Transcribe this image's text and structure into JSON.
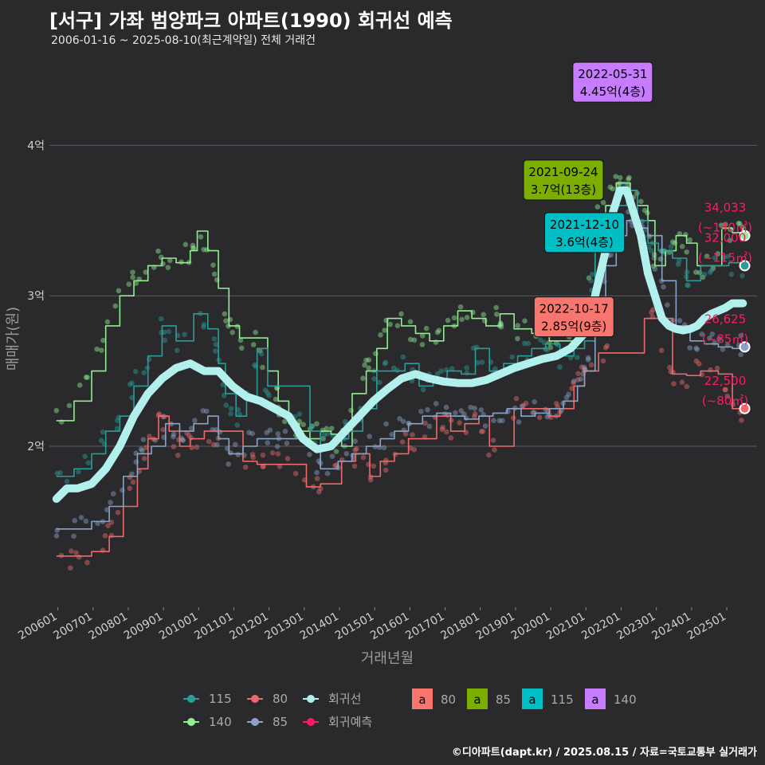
{
  "header": {
    "title": "[서구] 가좌 범양파크 아파트(1990) 회귀선 예측",
    "subtitle": "2006-01-16 ~ 2025-08-10(최근계약일) 전체 거래건"
  },
  "caption": "©디아파트(dapt.kr) / 2025.08.15 / 자료=국토교통부 실거래가",
  "colors": {
    "background": "#2a2a2d",
    "s115": "#2a9d9a",
    "s140": "#90ee90",
    "s80": "#ee6a6a",
    "s85": "#8aa3c8",
    "regression": "#b2f0ee",
    "predict": "#ff1a66",
    "tag80": "#f8766d",
    "tag85": "#7cae00",
    "tag115": "#00bfc4",
    "tag140": "#c77cff"
  },
  "chart_data": {
    "type": "line",
    "xlabel": "거래년월",
    "ylabel": "매매가(원)",
    "x_ticks": [
      "200601",
      "200701",
      "200801",
      "200901",
      "201001",
      "201101",
      "201201",
      "201301",
      "201401",
      "201501",
      "201601",
      "201701",
      "201801",
      "201901",
      "202001",
      "202101",
      "202201",
      "202301",
      "202401",
      "202501"
    ],
    "y_ticks": [
      {
        "value": 2.0,
        "label": "2억"
      },
      {
        "value": 3.0,
        "label": "3억"
      },
      {
        "value": 4.0,
        "label": "4억"
      }
    ],
    "ylim": [
      0.93,
      4.5
    ],
    "xlim": [
      2005.8,
      2025.9
    ],
    "grid": true,
    "series": [
      {
        "name": "140",
        "color_key": "s140",
        "x": [
          2006.0,
          2006.5,
          2007.0,
          2007.4,
          2007.8,
          2008.2,
          2008.6,
          2009.0,
          2009.4,
          2009.8,
          2010.0,
          2010.3,
          2010.6,
          2010.9,
          2011.2,
          2011.6,
          2012.0,
          2012.3,
          2012.6,
          2012.9,
          2013.2,
          2013.5,
          2013.8,
          2014.1,
          2014.4,
          2014.8,
          2015.1,
          2015.4,
          2015.8,
          2016.2,
          2016.6,
          2017.0,
          2017.4,
          2017.8,
          2018.2,
          2018.6,
          2019.0,
          2019.5,
          2020.0,
          2020.5,
          2020.8,
          2021.0,
          2021.3,
          2021.6,
          2021.9,
          2022.1,
          2022.3,
          2022.5,
          2022.8,
          2023.0,
          2023.3,
          2023.6,
          2023.9,
          2024.2,
          2024.6,
          2024.9,
          2025.2,
          2025.5
        ],
        "y": [
          2.17,
          2.3,
          2.5,
          2.8,
          3.0,
          3.1,
          3.2,
          3.25,
          3.22,
          3.3,
          3.43,
          3.3,
          3.05,
          2.8,
          2.72,
          2.72,
          2.5,
          2.3,
          2.15,
          2.1,
          2.05,
          2.1,
          2.08,
          2.0,
          2.35,
          2.5,
          2.65,
          2.85,
          2.8,
          2.75,
          2.7,
          2.8,
          2.9,
          2.85,
          2.8,
          2.88,
          2.78,
          2.75,
          2.7,
          2.7,
          2.75,
          2.9,
          3.5,
          3.6,
          3.75,
          3.75,
          3.7,
          3.6,
          3.5,
          3.2,
          3.3,
          3.4,
          3.35,
          3.2,
          3.2,
          3.45,
          3.42,
          3.45
        ]
      },
      {
        "name": "115",
        "color_key": "s115",
        "x": [
          2006.0,
          2006.5,
          2007.0,
          2007.4,
          2007.8,
          2008.2,
          2008.6,
          2009.0,
          2009.4,
          2009.9,
          2010.3,
          2010.6,
          2010.8,
          2011.1,
          2011.4,
          2011.7,
          2012.0,
          2013.2,
          2013.5,
          2013.9,
          2014.3,
          2014.7,
          2015.1,
          2015.5,
          2015.9,
          2016.3,
          2016.7,
          2017.1,
          2017.5,
          2017.9,
          2018.3,
          2018.7,
          2019.1,
          2019.5,
          2019.9,
          2020.3,
          2020.7,
          2021.0,
          2021.3,
          2021.6,
          2021.9,
          2022.2,
          2022.5,
          2022.8,
          2023.1,
          2023.5,
          2023.9,
          2024.3,
          2024.7,
          2025.1,
          2025.5
        ],
        "y": [
          1.8,
          1.85,
          1.95,
          2.1,
          2.2,
          2.4,
          2.6,
          2.8,
          2.7,
          2.88,
          2.78,
          2.55,
          2.35,
          2.2,
          2.3,
          2.65,
          2.4,
          2.1,
          2.0,
          2.05,
          2.1,
          2.25,
          2.5,
          2.5,
          2.55,
          2.4,
          2.45,
          2.5,
          2.48,
          2.65,
          2.5,
          2.55,
          2.6,
          2.65,
          2.68,
          2.6,
          2.65,
          2.7,
          3.3,
          3.45,
          3.6,
          3.7,
          3.5,
          3.35,
          3.3,
          3.25,
          3.1,
          3.2,
          3.2,
          3.22,
          3.2
        ]
      },
      {
        "name": "80",
        "color_key": "s80",
        "x": [
          2006.0,
          2006.5,
          2007.0,
          2007.5,
          2007.9,
          2008.3,
          2008.6,
          2008.9,
          2009.2,
          2009.5,
          2009.8,
          2010.2,
          2011.3,
          2011.7,
          2012.0,
          2012.4,
          2013.1,
          2013.5,
          2014.1,
          2014.5,
          2014.9,
          2015.2,
          2015.6,
          2016.0,
          2016.4,
          2016.8,
          2017.2,
          2017.6,
          2018.0,
          2018.3,
          2019.0,
          2019.5,
          2020.0,
          2020.3,
          2020.7,
          2021.0,
          2021.4,
          2022.7,
          2023.0,
          2023.5,
          2023.9,
          2024.3,
          2024.8,
          2025.2,
          2025.5
        ],
        "y": [
          1.27,
          1.27,
          1.3,
          1.4,
          1.6,
          1.85,
          2.05,
          2.2,
          2.1,
          2.0,
          2.05,
          2.1,
          1.9,
          1.88,
          1.88,
          1.88,
          1.73,
          1.75,
          1.9,
          1.95,
          1.8,
          1.9,
          1.95,
          2.05,
          2.05,
          2.2,
          2.1,
          2.15,
          2.2,
          2.0,
          2.25,
          2.25,
          2.2,
          2.25,
          2.4,
          2.5,
          2.62,
          2.85,
          2.85,
          2.48,
          2.47,
          2.5,
          2.48,
          2.25,
          2.25
        ]
      },
      {
        "name": "85",
        "color_key": "s85",
        "x": [
          2006.0,
          2006.5,
          2007.0,
          2007.5,
          2007.9,
          2008.3,
          2008.7,
          2009.1,
          2009.5,
          2009.9,
          2010.3,
          2010.6,
          2010.9,
          2011.3,
          2011.7,
          2012.1,
          2012.4,
          2013.1,
          2013.5,
          2014.0,
          2014.4,
          2014.8,
          2015.2,
          2015.6,
          2016.0,
          2016.4,
          2016.8,
          2017.2,
          2017.6,
          2018.0,
          2018.4,
          2018.8,
          2019.2,
          2019.6,
          2020.0,
          2020.4,
          2020.8,
          2021.0,
          2021.3,
          2021.6,
          2021.9,
          2022.2,
          2022.5,
          2022.8,
          2023.2,
          2023.6,
          2024.0,
          2024.4,
          2024.8,
          2025.2,
          2025.5
        ],
        "y": [
          1.45,
          1.45,
          1.5,
          1.6,
          1.8,
          1.95,
          2.0,
          2.15,
          2.1,
          2.15,
          2.2,
          2.05,
          1.95,
          2.0,
          2.05,
          2.05,
          2.05,
          2.0,
          1.85,
          1.9,
          1.95,
          2.0,
          2.05,
          2.1,
          2.15,
          2.2,
          2.22,
          2.2,
          2.18,
          2.2,
          2.22,
          2.25,
          2.2,
          2.22,
          2.25,
          2.3,
          2.4,
          2.5,
          2.8,
          3.2,
          3.4,
          3.5,
          3.45,
          3.4,
          3.1,
          2.8,
          2.7,
          2.68,
          2.66,
          2.65,
          2.66
        ]
      },
      {
        "name": "회귀선",
        "color_key": "regression",
        "x": [
          2006.0,
          2006.3,
          2006.6,
          2007.0,
          2007.4,
          2007.8,
          2008.2,
          2008.6,
          2009.0,
          2009.4,
          2009.8,
          2010.2,
          2010.6,
          2011.0,
          2011.4,
          2011.8,
          2012.2,
          2012.6,
          2013.0,
          2013.4,
          2013.8,
          2014.2,
          2014.6,
          2015.0,
          2015.4,
          2015.8,
          2016.2,
          2016.6,
          2017.0,
          2017.4,
          2017.8,
          2018.2,
          2018.6,
          2019.0,
          2019.4,
          2019.8,
          2020.2,
          2020.6,
          2021.0,
          2021.2,
          2021.4,
          2021.6,
          2021.8,
          2022.0,
          2022.2,
          2022.4,
          2022.6,
          2022.8,
          2023.0,
          2023.2,
          2023.4,
          2023.6,
          2023.8,
          2024.0,
          2024.2,
          2024.4,
          2024.6,
          2024.8,
          2025.0,
          2025.2,
          2025.5
        ],
        "y": [
          1.65,
          1.72,
          1.72,
          1.75,
          1.85,
          2.0,
          2.2,
          2.35,
          2.45,
          2.52,
          2.55,
          2.5,
          2.5,
          2.4,
          2.33,
          2.3,
          2.25,
          2.2,
          2.05,
          1.98,
          2.0,
          2.1,
          2.2,
          2.3,
          2.38,
          2.45,
          2.48,
          2.45,
          2.43,
          2.42,
          2.42,
          2.44,
          2.48,
          2.52,
          2.55,
          2.58,
          2.6,
          2.65,
          2.75,
          2.9,
          3.1,
          3.3,
          3.55,
          3.7,
          3.7,
          3.55,
          3.4,
          3.15,
          3.0,
          2.85,
          2.8,
          2.78,
          2.77,
          2.78,
          2.8,
          2.85,
          2.88,
          2.9,
          2.92,
          2.95,
          2.95
        ]
      }
    ],
    "annotations": [
      {
        "date": "2022-05-31",
        "text": "4.45억(4층)",
        "tag": "140",
        "x": 2021.8,
        "y": 4.42
      },
      {
        "date": "2021-09-24",
        "text": "3.7억(13층)",
        "tag": "85",
        "x": 2020.4,
        "y": 3.77
      },
      {
        "date": "2021-12-10",
        "text": "3.6억(4층)",
        "tag": "115",
        "x": 2021.0,
        "y": 3.42
      },
      {
        "date": "2022-10-17",
        "text": "2.85억(9층)",
        "tag": "80",
        "x": 2020.7,
        "y": 2.86
      }
    ],
    "predictions": [
      {
        "value": "34,033",
        "area": "(~140㎡)",
        "y": 3.4,
        "series": "140"
      },
      {
        "value": "32,000",
        "area": "(~115㎡)",
        "y": 3.2,
        "series": "115"
      },
      {
        "value": "26,625",
        "area": "(~85㎡)",
        "y": 2.66,
        "series": "85"
      },
      {
        "value": "22,500",
        "area": "(~80㎡)",
        "y": 2.25,
        "series": "80"
      }
    ],
    "legend": {
      "placement": "bottom",
      "lines": [
        {
          "label": "115",
          "color_key": "s115"
        },
        {
          "label": "80",
          "color_key": "s80"
        },
        {
          "label": "회귀선",
          "color_key": "regression"
        },
        {
          "label": "140",
          "color_key": "s140"
        },
        {
          "label": "85",
          "color_key": "s85"
        },
        {
          "label": "회귀예측",
          "color_key": "predict"
        }
      ],
      "tags": [
        {
          "label": "80",
          "color_key": "tag80"
        },
        {
          "label": "85",
          "color_key": "tag85"
        },
        {
          "label": "115",
          "color_key": "tag115"
        },
        {
          "label": "140",
          "color_key": "tag140"
        }
      ],
      "tag_glyph": "a"
    }
  }
}
